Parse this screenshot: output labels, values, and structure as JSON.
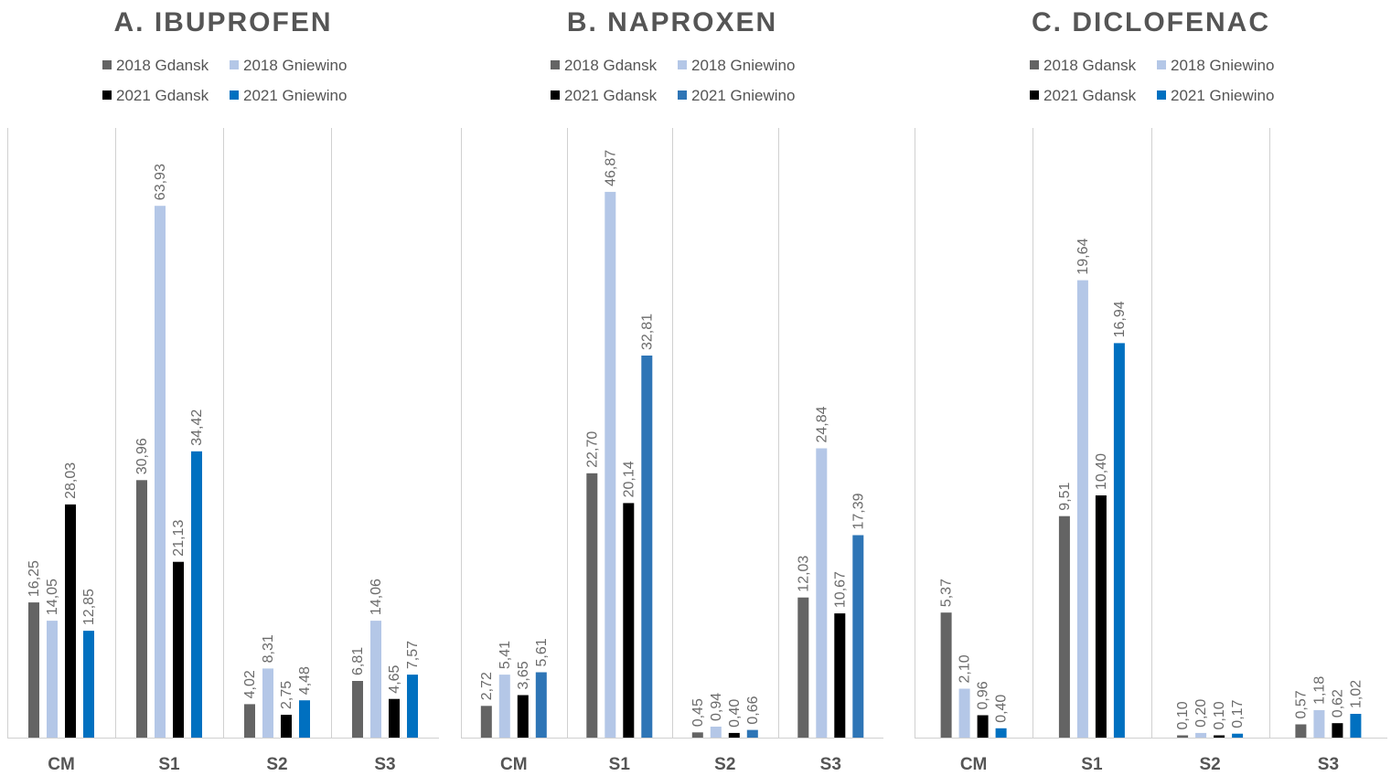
{
  "series_colors": [
    "#646464",
    "#b4c7e7",
    "#000000",
    "#0070c0"
  ],
  "chart_data": [
    {
      "type": "bar",
      "title": "A. IBUPROFEN",
      "categories": [
        "CM",
        "S1",
        "S2",
        "S3"
      ],
      "legend": "top",
      "grid": false,
      "ylim": [
        0,
        70
      ],
      "series": [
        {
          "name": "2018 Gdansk",
          "color": "#646464",
          "values": [
            16.25,
            30.96,
            4.02,
            6.81
          ],
          "labels": [
            "16,25",
            "30,96",
            "4,02",
            "6,81"
          ]
        },
        {
          "name": "2018 Gniewino",
          "color": "#b4c7e7",
          "values": [
            14.05,
            63.93,
            8.31,
            14.06
          ],
          "labels": [
            "14,05",
            "63,93",
            "8,31",
            "14,06"
          ]
        },
        {
          "name": "2021 Gdansk",
          "color": "#000000",
          "values": [
            28.03,
            21.13,
            2.75,
            4.65
          ],
          "labels": [
            "28,03",
            "21,13",
            "2,75",
            "4,65"
          ]
        },
        {
          "name": "2021 Gniewino",
          "color": "#0070c0",
          "values": [
            12.85,
            34.42,
            4.48,
            7.57
          ],
          "labels": [
            "12,85",
            "34,42",
            "4,48",
            "7,57"
          ]
        }
      ]
    },
    {
      "type": "bar",
      "title": "B. NAPROXEN",
      "categories": [
        "CM",
        "S1",
        "S2",
        "S3"
      ],
      "legend": "top",
      "grid": false,
      "ylim": [
        0,
        50
      ],
      "series": [
        {
          "name": "2018 Gdansk",
          "color": "#646464",
          "values": [
            2.72,
            22.7,
            0.45,
            12.03
          ],
          "labels": [
            "2,72",
            "22,70",
            "0,45",
            "12,03"
          ]
        },
        {
          "name": "2018 Gniewino",
          "color": "#b4c7e7",
          "values": [
            5.41,
            46.87,
            0.94,
            24.84
          ],
          "labels": [
            "5,41",
            "46,87",
            "0,94",
            "24,84"
          ]
        },
        {
          "name": "2021 Gdansk",
          "color": "#000000",
          "values": [
            3.65,
            20.14,
            0.4,
            10.67
          ],
          "labels": [
            "3,65",
            "20,14",
            "0,40",
            "10,67"
          ]
        },
        {
          "name": "2021 Gniewino",
          "color": "#2e75b6",
          "values": [
            5.61,
            32.81,
            0.66,
            17.39
          ],
          "labels": [
            "5,61",
            "32,81",
            "0,66",
            "17,39"
          ]
        }
      ]
    },
    {
      "type": "bar",
      "title": "C. DICLOFENAC",
      "categories": [
        "CM",
        "S1",
        "S2",
        "S3"
      ],
      "legend": "top",
      "grid": false,
      "ylim": [
        0,
        25
      ],
      "series": [
        {
          "name": "2018 Gdansk",
          "color": "#646464",
          "values": [
            5.37,
            9.51,
            0.1,
            0.57
          ],
          "labels": [
            "5,37",
            "9,51",
            "0,10",
            "0,57"
          ]
        },
        {
          "name": "2018 Gniewino",
          "color": "#b4c7e7",
          "values": [
            2.1,
            19.64,
            0.2,
            1.18
          ],
          "labels": [
            "2,10",
            "19,64",
            "0,20",
            "1,18"
          ]
        },
        {
          "name": "2021 Gdansk",
          "color": "#000000",
          "values": [
            0.96,
            10.4,
            0.1,
            0.62
          ],
          "labels": [
            "0,96",
            "10,40",
            "0,10",
            "0,62"
          ]
        },
        {
          "name": "2021 Gniewino",
          "color": "#0070c0",
          "values": [
            0.4,
            16.94,
            0.17,
            1.02
          ],
          "labels": [
            "0,40",
            "16,94",
            "0,17",
            "1,02"
          ]
        }
      ]
    }
  ]
}
